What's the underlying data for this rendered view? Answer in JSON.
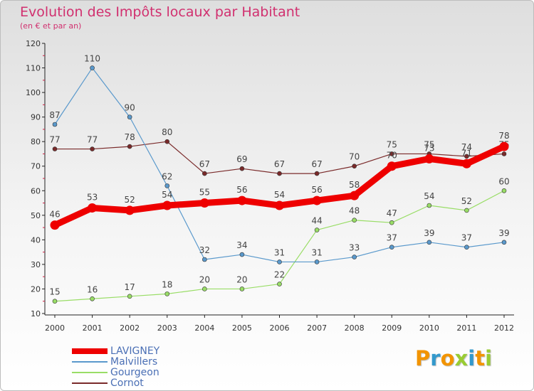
{
  "title": "Evolution des Impôts locaux par Habitant",
  "subtitle": "(en € et par an)",
  "chart_data": {
    "type": "line",
    "x": [
      "2000",
      "2001",
      "2002",
      "2003",
      "2004",
      "2005",
      "2006",
      "2007",
      "2008",
      "2009",
      "2010",
      "2011",
      "2012"
    ],
    "yticks": [
      "120",
      "110",
      "100",
      "90",
      "80",
      "70",
      "60",
      "50",
      "40",
      "30",
      "20",
      "10"
    ],
    "ylim": [
      10,
      120
    ],
    "grid": false,
    "legend_position": "bottom-left",
    "series": [
      {
        "name": "Cornot",
        "color": "#7a2a2a",
        "style": "thin",
        "values": [
          77,
          77,
          78,
          80,
          67,
          69,
          67,
          67,
          70,
          75,
          75,
          74,
          75
        ],
        "labels": [
          "77",
          "77",
          "78",
          "80",
          "67",
          "69",
          "67",
          "67",
          "70",
          "75",
          "75",
          "74",
          "75"
        ]
      },
      {
        "name": "Gourgeon",
        "color": "#99dd66",
        "style": "thin",
        "values": [
          15,
          16,
          17,
          18,
          20,
          20,
          22,
          44,
          48,
          47,
          54,
          52,
          60
        ],
        "labels": [
          "15",
          "16",
          "17",
          "18",
          "20",
          "20",
          "22",
          "44",
          "48",
          "47",
          "54",
          "52",
          "60"
        ]
      },
      {
        "name": "Malvillers",
        "color": "#5a99cc",
        "style": "thin",
        "values": [
          87,
          110,
          90,
          62,
          32,
          34,
          31,
          31,
          33,
          37,
          39,
          37,
          39
        ],
        "labels": [
          "87",
          "110",
          "90",
          "62",
          "32",
          "34",
          "31",
          "31",
          "33",
          "37",
          "39",
          "37",
          "39"
        ]
      },
      {
        "name": "LAVIGNEY",
        "color": "#ee0000",
        "style": "thick",
        "values": [
          46,
          53,
          52,
          54,
          55,
          56,
          54,
          56,
          58,
          70,
          73,
          71,
          78
        ],
        "labels": [
          "46",
          "53",
          "52",
          "54",
          "55",
          "56",
          "54",
          "56",
          "58",
          "70",
          "73",
          "71",
          "78"
        ]
      }
    ],
    "legend": [
      "LAVIGNEY",
      "Malvillers",
      "Gourgeon",
      "Cornot"
    ]
  },
  "logo": {
    "letters": [
      "P",
      "r",
      "o",
      "x",
      "i",
      "t",
      "i"
    ],
    "colors": [
      "#f29400",
      "#3399cc",
      "#f29400",
      "#99cc33",
      "#3399cc",
      "#f29400",
      "#99cc33"
    ]
  }
}
